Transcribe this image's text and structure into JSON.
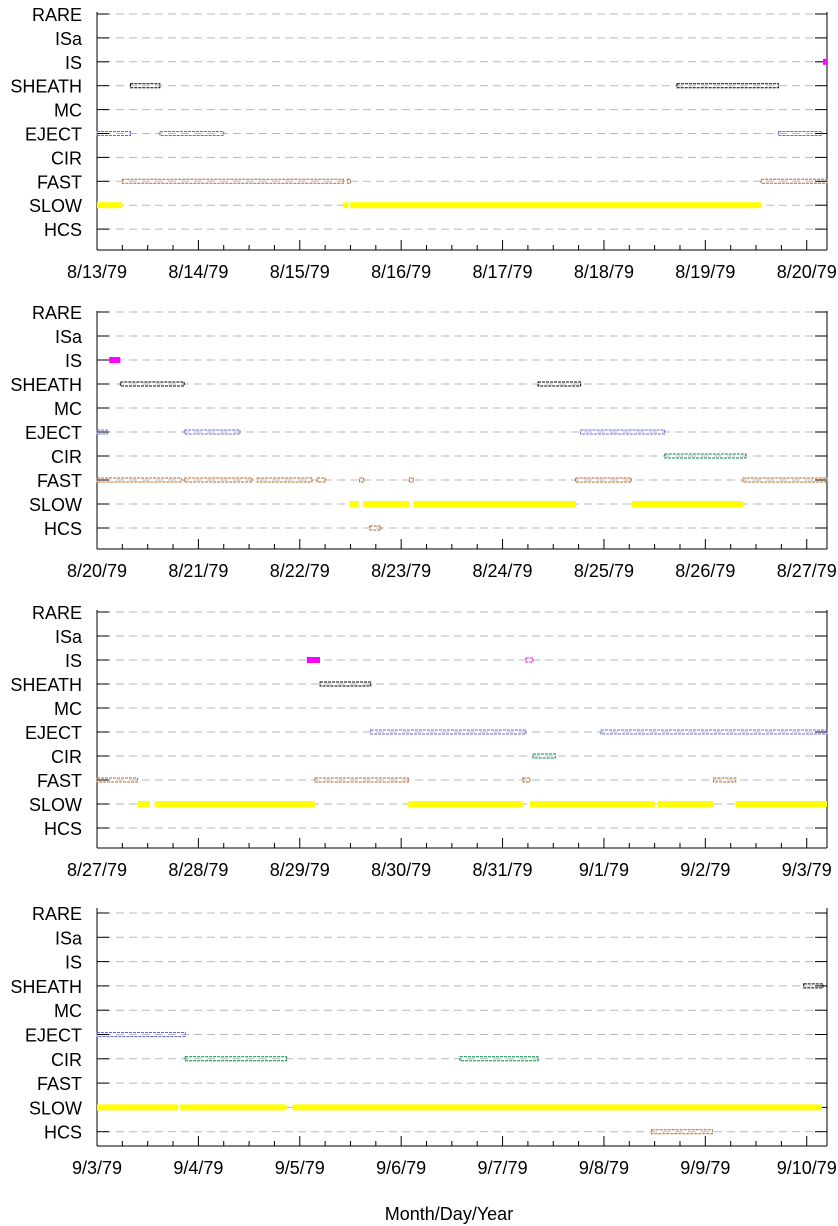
{
  "chart_data": {
    "type": "timeline",
    "xlabel": "Month/Day/Year",
    "categories": [
      "RARE",
      "ISa",
      "IS",
      "SHEATH",
      "MC",
      "EJECT",
      "CIR",
      "FAST",
      "SLOW",
      "HCS"
    ],
    "colors": {
      "IS": "#ff00ff",
      "SHEATH": "#000000",
      "EJECT": "#6666dd",
      "CIR": "#008844",
      "FAST": "#b8662a",
      "SLOW": "#ffff00",
      "HCS": "#b8662a"
    },
    "panels": [
      {
        "date_labels": [
          "8/13/79",
          "8/14/79",
          "8/15/79",
          "8/16/79",
          "8/17/79",
          "8/18/79",
          "8/19/79",
          "8/20/79"
        ],
        "intervals": [
          {
            "cat": "SLOW",
            "start": 0.0,
            "end": 0.25,
            "style": "thick"
          },
          {
            "cat": "SLOW",
            "start": 2.43,
            "end": 2.48,
            "style": "thick"
          },
          {
            "cat": "SLOW",
            "start": 2.5,
            "end": 6.55,
            "style": "thick"
          },
          {
            "cat": "FAST",
            "start": 0.25,
            "end": 2.43,
            "style": "hollow"
          },
          {
            "cat": "FAST",
            "start": 2.47,
            "end": 2.5,
            "style": "hollow"
          },
          {
            "cat": "FAST",
            "start": 6.55,
            "end": 7.2,
            "style": "hollow"
          },
          {
            "cat": "EJECT",
            "start": 0.0,
            "end": 0.33,
            "style": "hollow"
          },
          {
            "cat": "EJECT",
            "start": 0.62,
            "end": 1.25,
            "style": "hollow"
          },
          {
            "cat": "EJECT",
            "start": 6.72,
            "end": 7.15,
            "style": "hollow"
          },
          {
            "cat": "SHEATH",
            "start": 0.33,
            "end": 0.62,
            "style": "hollow"
          },
          {
            "cat": "SHEATH",
            "start": 5.72,
            "end": 6.72,
            "style": "hollow"
          },
          {
            "cat": "IS",
            "start": 7.16,
            "end": 7.2,
            "style": "solid"
          }
        ]
      },
      {
        "date_labels": [
          "8/20/79",
          "8/21/79",
          "8/22/79",
          "8/23/79",
          "8/24/79",
          "8/25/79",
          "8/26/79",
          "8/27/79"
        ],
        "intervals": [
          {
            "cat": "IS",
            "start": 0.12,
            "end": 0.23,
            "style": "thick"
          },
          {
            "cat": "SHEATH",
            "start": 0.23,
            "end": 0.86,
            "style": "hollow"
          },
          {
            "cat": "EJECT",
            "start": 0.0,
            "end": 0.1,
            "style": "hollow"
          },
          {
            "cat": "EJECT",
            "start": 0.86,
            "end": 1.41,
            "style": "hollow"
          },
          {
            "cat": "EJECT",
            "start": 4.77,
            "end": 5.6,
            "style": "hollow"
          },
          {
            "cat": "SHEATH",
            "start": 4.35,
            "end": 4.77,
            "style": "hollow"
          },
          {
            "cat": "CIR",
            "start": 5.6,
            "end": 6.4,
            "style": "hollow"
          },
          {
            "cat": "FAST",
            "start": 0.0,
            "end": 0.83,
            "style": "hollow"
          },
          {
            "cat": "FAST",
            "start": 0.86,
            "end": 1.53,
            "style": "hollow"
          },
          {
            "cat": "FAST",
            "start": 1.58,
            "end": 2.12,
            "style": "hollow"
          },
          {
            "cat": "FAST",
            "start": 2.17,
            "end": 2.25,
            "style": "hollow"
          },
          {
            "cat": "FAST",
            "start": 2.59,
            "end": 2.63,
            "style": "hollow"
          },
          {
            "cat": "FAST",
            "start": 3.08,
            "end": 3.12,
            "style": "hollow"
          },
          {
            "cat": "FAST",
            "start": 4.72,
            "end": 5.27,
            "style": "hollow"
          },
          {
            "cat": "FAST",
            "start": 6.37,
            "end": 7.2,
            "style": "hollow"
          },
          {
            "cat": "SLOW",
            "start": 2.49,
            "end": 2.58,
            "style": "thick"
          },
          {
            "cat": "SLOW",
            "start": 2.63,
            "end": 3.08,
            "style": "thick"
          },
          {
            "cat": "SLOW",
            "start": 3.12,
            "end": 4.72,
            "style": "thick"
          },
          {
            "cat": "SLOW",
            "start": 5.27,
            "end": 6.37,
            "style": "thick"
          },
          {
            "cat": "HCS",
            "start": 2.69,
            "end": 2.8,
            "style": "hollow"
          }
        ]
      },
      {
        "date_labels": [
          "8/27/79",
          "8/28/79",
          "8/29/79",
          "8/30/79",
          "8/31/79",
          "9/1/79",
          "9/2/79",
          "9/3/79"
        ],
        "intervals": [
          {
            "cat": "FAST",
            "start": 0.0,
            "end": 0.4,
            "style": "hollow"
          },
          {
            "cat": "FAST",
            "start": 2.15,
            "end": 3.07,
            "style": "hollow"
          },
          {
            "cat": "FAST",
            "start": 4.2,
            "end": 4.27,
            "style": "hollow"
          },
          {
            "cat": "FAST",
            "start": 6.08,
            "end": 6.3,
            "style": "hollow"
          },
          {
            "cat": "SLOW",
            "start": 0.4,
            "end": 0.52,
            "style": "thick"
          },
          {
            "cat": "SLOW",
            "start": 0.57,
            "end": 2.15,
            "style": "thick"
          },
          {
            "cat": "SLOW",
            "start": 3.07,
            "end": 4.2,
            "style": "thick"
          },
          {
            "cat": "SLOW",
            "start": 4.27,
            "end": 5.5,
            "style": "thick"
          },
          {
            "cat": "SLOW",
            "start": 5.53,
            "end": 6.08,
            "style": "thick"
          },
          {
            "cat": "SLOW",
            "start": 6.3,
            "end": 7.2,
            "style": "thick"
          },
          {
            "cat": "IS",
            "start": 2.07,
            "end": 2.2,
            "style": "thick"
          },
          {
            "cat": "IS",
            "start": 4.23,
            "end": 4.3,
            "style": "hollow"
          },
          {
            "cat": "SHEATH",
            "start": 2.2,
            "end": 2.7,
            "style": "hollow"
          },
          {
            "cat": "EJECT",
            "start": 2.7,
            "end": 4.23,
            "style": "hollow"
          },
          {
            "cat": "EJECT",
            "start": 4.97,
            "end": 7.2,
            "style": "hollow"
          },
          {
            "cat": "CIR",
            "start": 4.3,
            "end": 4.52,
            "style": "hollow"
          }
        ]
      },
      {
        "date_labels": [
          "9/3/79",
          "9/4/79",
          "9/5/79",
          "9/6/79",
          "9/7/79",
          "9/8/79",
          "9/9/79",
          "9/10/79"
        ],
        "intervals": [
          {
            "cat": "EJECT",
            "start": 0.0,
            "end": 0.87,
            "style": "hollow"
          },
          {
            "cat": "CIR",
            "start": 0.87,
            "end": 1.87,
            "style": "hollow"
          },
          {
            "cat": "CIR",
            "start": 3.58,
            "end": 4.35,
            "style": "hollow"
          },
          {
            "cat": "SLOW",
            "start": 0.0,
            "end": 0.8,
            "style": "thick"
          },
          {
            "cat": "SLOW",
            "start": 0.82,
            "end": 1.87,
            "style": "thick"
          },
          {
            "cat": "SLOW",
            "start": 1.93,
            "end": 7.15,
            "style": "thick"
          },
          {
            "cat": "HCS",
            "start": 5.47,
            "end": 6.07,
            "style": "hollow"
          },
          {
            "cat": "SHEATH",
            "start": 6.97,
            "end": 7.16,
            "style": "hollow"
          }
        ]
      }
    ]
  }
}
